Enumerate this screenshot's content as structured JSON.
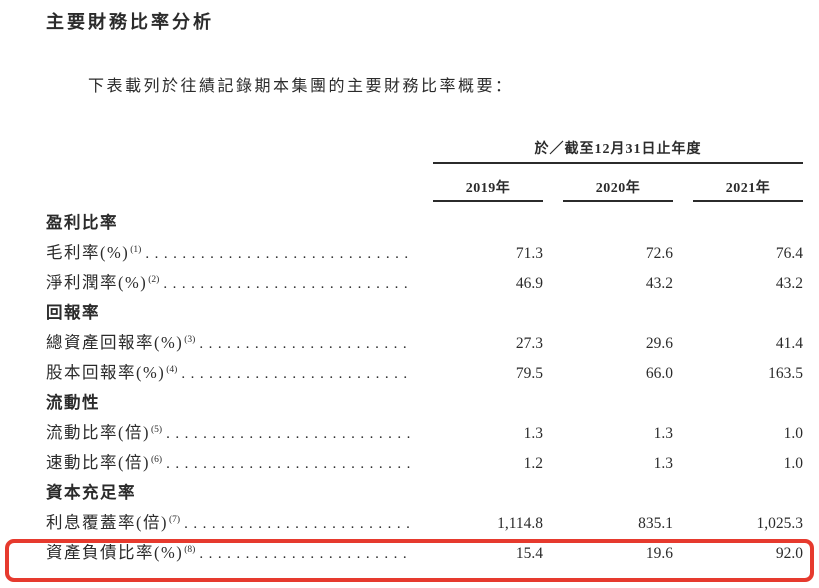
{
  "page": {
    "title": "主要財務比率分析",
    "intro": "下表載列於往績記錄期本集團的主要財務比率概要："
  },
  "table": {
    "period_header": "於／截至12月31日止年度",
    "columns": [
      "2019年",
      "2020年",
      "2021年"
    ],
    "rows": [
      {
        "type": "section",
        "label": "盈利比率"
      },
      {
        "type": "data",
        "label": "毛利率(%)",
        "sup": "(1)",
        "values": [
          "71.3",
          "72.6",
          "76.4"
        ]
      },
      {
        "type": "data",
        "label": "淨利潤率(%)",
        "sup": "(2)",
        "values": [
          "46.9",
          "43.2",
          "43.2"
        ]
      },
      {
        "type": "section",
        "label": "回報率"
      },
      {
        "type": "data",
        "label": "總資產回報率(%)",
        "sup": "(3)",
        "values": [
          "27.3",
          "29.6",
          "41.4"
        ]
      },
      {
        "type": "data",
        "label": "股本回報率(%)",
        "sup": "(4)",
        "values": [
          "79.5",
          "66.0",
          "163.5"
        ]
      },
      {
        "type": "section",
        "label": "流動性"
      },
      {
        "type": "data",
        "label": "流動比率(倍)",
        "sup": "(5)",
        "values": [
          "1.3",
          "1.3",
          "1.0"
        ]
      },
      {
        "type": "data",
        "label": "速動比率(倍)",
        "sup": "(6)",
        "values": [
          "1.2",
          "1.3",
          "1.0"
        ]
      },
      {
        "type": "section",
        "label": "資本充足率"
      },
      {
        "type": "data",
        "label": "利息覆蓋率(倍)",
        "sup": "(7)",
        "values": [
          "1,114.8",
          "835.1",
          "1,025.3"
        ]
      },
      {
        "type": "data",
        "label": "資產負債比率(%)",
        "sup": "(8)",
        "values": [
          "15.4",
          "19.6",
          "92.0"
        ],
        "highlighted": true
      }
    ],
    "highlight_color": "#e63a2e"
  }
}
